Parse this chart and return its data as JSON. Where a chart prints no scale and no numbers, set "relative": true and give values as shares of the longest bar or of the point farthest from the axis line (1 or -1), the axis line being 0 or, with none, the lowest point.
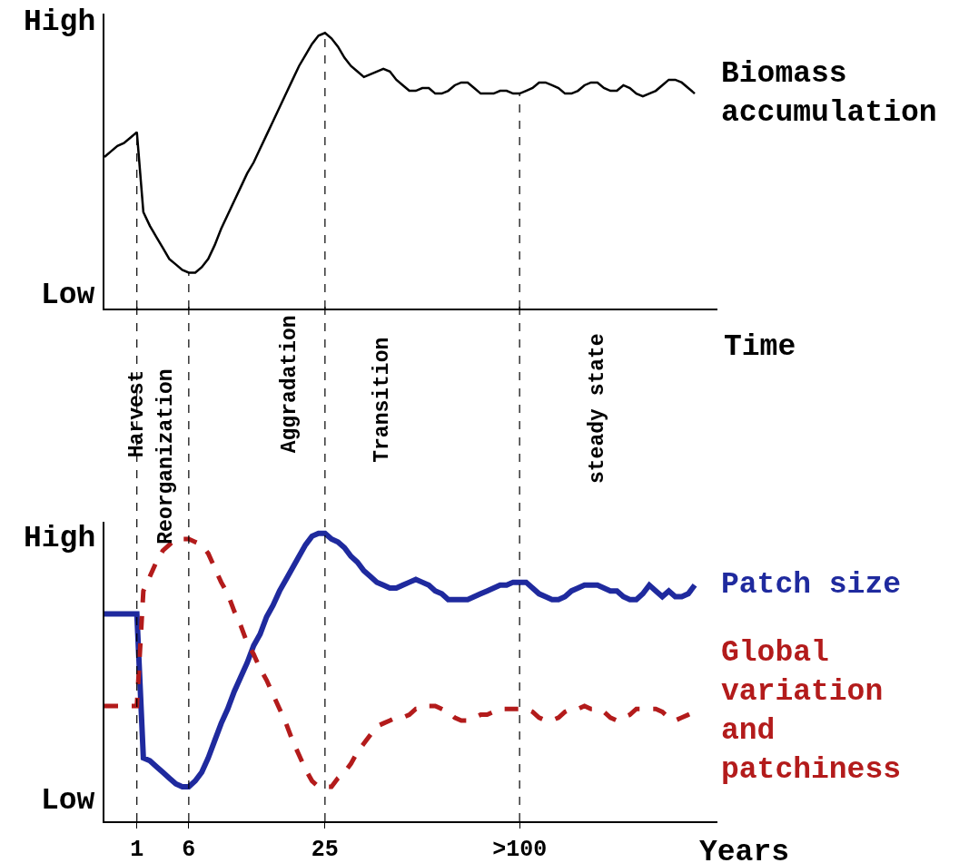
{
  "chart_data": [
    {
      "type": "line",
      "xlabel": "Time",
      "relative": true,
      "tick_labels": false,
      "categories": [
        null,
        null,
        null,
        null,
        null,
        "1",
        null,
        null,
        null,
        null,
        null,
        null,
        null,
        "6",
        null,
        null,
        null,
        null,
        null,
        null,
        null,
        null,
        null,
        null,
        null,
        null,
        null,
        null,
        null,
        null,
        null,
        null,
        null,
        null,
        "25",
        null,
        null,
        null,
        null,
        null,
        null,
        null,
        null,
        null,
        null,
        null,
        null,
        null,
        null,
        null,
        null,
        null,
        null,
        null,
        null,
        null,
        null,
        null,
        null,
        null,
        null,
        null,
        null,
        null,
        ">100",
        null,
        null,
        null,
        null,
        null,
        null,
        null,
        null,
        null,
        null,
        null,
        null,
        null,
        null,
        null,
        null,
        null,
        null,
        null,
        null,
        null,
        null,
        null,
        null,
        null,
        null,
        null
      ],
      "series": [
        {
          "name": "Biomass accumulation",
          "color": "#000000",
          "line_style": "solid",
          "values": [
            0.55,
            0.57,
            0.59,
            0.6,
            0.62,
            0.64,
            0.35,
            0.3,
            0.26,
            0.22,
            0.18,
            0.16,
            0.14,
            0.13,
            0.13,
            0.15,
            0.18,
            0.23,
            0.29,
            0.34,
            0.39,
            0.44,
            0.49,
            0.53,
            0.58,
            0.63,
            0.68,
            0.73,
            0.78,
            0.83,
            0.88,
            0.92,
            0.96,
            0.99,
            1.0,
            0.98,
            0.95,
            0.91,
            0.88,
            0.86,
            0.84,
            0.85,
            0.86,
            0.87,
            0.86,
            0.83,
            0.81,
            0.79,
            0.79,
            0.8,
            0.8,
            0.78,
            0.78,
            0.79,
            0.81,
            0.82,
            0.82,
            0.8,
            0.78,
            0.78,
            0.78,
            0.79,
            0.79,
            0.78,
            0.78,
            0.79,
            0.8,
            0.82,
            0.82,
            0.81,
            0.8,
            0.78,
            0.78,
            0.79,
            0.81,
            0.82,
            0.82,
            0.8,
            0.79,
            0.79,
            0.81,
            0.8,
            0.78,
            0.77,
            0.78,
            0.79,
            0.81,
            0.83,
            0.83,
            0.82,
            0.8,
            0.78
          ]
        }
      ],
      "ref_lines": [
        {
          "axis": "x",
          "value": "1",
          "line_style": "dashed",
          "color": "#000000"
        },
        {
          "axis": "x",
          "value": "6",
          "line_style": "dashed",
          "color": "#000000"
        },
        {
          "axis": "x",
          "value": "25",
          "line_style": "dashed",
          "color": "#000000"
        },
        {
          "axis": "x",
          "value": ">100",
          "line_style": "dashed",
          "color": "#000000"
        }
      ],
      "annotations": [
        "High",
        "Low"
      ]
    },
    {
      "type": "line",
      "xlabel": "Years",
      "relative": true,
      "tick_labels": "x",
      "categories": [
        null,
        null,
        null,
        null,
        null,
        "1",
        null,
        null,
        null,
        null,
        null,
        null,
        null,
        "6",
        null,
        null,
        null,
        null,
        null,
        null,
        null,
        null,
        null,
        null,
        null,
        null,
        null,
        null,
        null,
        null,
        null,
        null,
        null,
        null,
        "25",
        null,
        null,
        null,
        null,
        null,
        null,
        null,
        null,
        null,
        null,
        null,
        null,
        null,
        null,
        null,
        null,
        null,
        null,
        null,
        null,
        null,
        null,
        null,
        null,
        null,
        null,
        null,
        null,
        null,
        ">100",
        null,
        null,
        null,
        null,
        null,
        null,
        null,
        null,
        null,
        null,
        null,
        null,
        null,
        null,
        null,
        null,
        null,
        null,
        null,
        null,
        null,
        null,
        null,
        null,
        null,
        null,
        null
      ],
      "series": [
        {
          "name": "Patch size",
          "color": "#1f2a9e",
          "line_style": "solid",
          "values": [
            0.72,
            0.72,
            0.72,
            0.72,
            0.72,
            0.72,
            0.22,
            0.21,
            0.19,
            0.17,
            0.15,
            0.13,
            0.12,
            0.12,
            0.14,
            0.17,
            0.22,
            0.28,
            0.34,
            0.39,
            0.45,
            0.5,
            0.55,
            0.61,
            0.65,
            0.71,
            0.75,
            0.8,
            0.84,
            0.88,
            0.92,
            0.96,
            0.99,
            1.0,
            1.0,
            0.98,
            0.97,
            0.95,
            0.92,
            0.9,
            0.87,
            0.85,
            0.83,
            0.82,
            0.81,
            0.81,
            0.82,
            0.83,
            0.84,
            0.83,
            0.82,
            0.8,
            0.79,
            0.77,
            0.77,
            0.77,
            0.77,
            0.78,
            0.79,
            0.8,
            0.81,
            0.82,
            0.82,
            0.83,
            0.83,
            0.83,
            0.81,
            0.79,
            0.78,
            0.77,
            0.77,
            0.78,
            0.8,
            0.81,
            0.82,
            0.82,
            0.82,
            0.81,
            0.8,
            0.8,
            0.78,
            0.77,
            0.77,
            0.79,
            0.82,
            0.8,
            0.78,
            0.8,
            0.78,
            0.78,
            0.79,
            0.82
          ]
        },
        {
          "name": "Global variation and patchiness",
          "color": "#b31b1b",
          "line_style": "dashed",
          "values": [
            0.4,
            0.4,
            0.4,
            0.4,
            0.4,
            0.4,
            0.8,
            0.85,
            0.9,
            0.94,
            0.96,
            0.98,
            0.98,
            0.98,
            0.97,
            0.96,
            0.93,
            0.88,
            0.83,
            0.79,
            0.73,
            0.68,
            0.62,
            0.58,
            0.53,
            0.49,
            0.44,
            0.39,
            0.34,
            0.28,
            0.23,
            0.18,
            0.14,
            0.12,
            0.12,
            0.12,
            0.15,
            0.17,
            0.2,
            0.24,
            0.27,
            0.3,
            0.33,
            0.34,
            0.35,
            0.36,
            0.36,
            0.37,
            0.39,
            0.39,
            0.4,
            0.4,
            0.39,
            0.38,
            0.36,
            0.35,
            0.35,
            0.36,
            0.37,
            0.37,
            0.38,
            0.39,
            0.39,
            0.39,
            0.39,
            0.39,
            0.38,
            0.36,
            0.35,
            0.35,
            0.36,
            0.38,
            0.39,
            0.39,
            0.4,
            0.39,
            0.39,
            0.38,
            0.36,
            0.35,
            0.36,
            0.37,
            0.39,
            0.39,
            0.39,
            0.39,
            0.38,
            0.36,
            0.35,
            0.36,
            0.37,
            0.38
          ]
        }
      ],
      "ref_lines": [
        {
          "axis": "x",
          "value": "1",
          "line_style": "dashed",
          "color": "#000000"
        },
        {
          "axis": "x",
          "value": "6",
          "line_style": "dashed",
          "color": "#000000"
        },
        {
          "axis": "x",
          "value": "25",
          "line_style": "dashed",
          "color": "#000000"
        },
        {
          "axis": "x",
          "value": ">100",
          "line_style": "dashed",
          "color": "#000000"
        }
      ],
      "annotations": [
        "High",
        "Low",
        "Harvest",
        "Reorganization",
        "Aggradation",
        "Transition",
        "steady state"
      ]
    }
  ]
}
